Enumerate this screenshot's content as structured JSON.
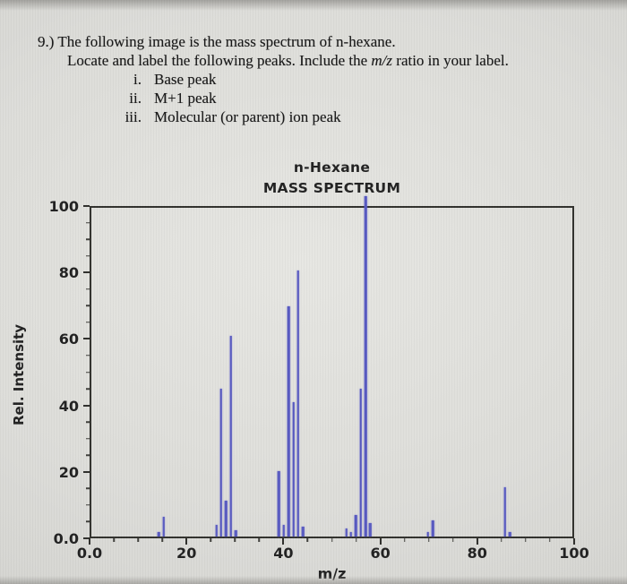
{
  "question": {
    "number": "9.)",
    "line1": "The following image is the mass spectrum of n-hexane.",
    "line2_pre": "Locate and label the following peaks. Include the ",
    "line2_italic": "m/z",
    "line2_post": " ratio in your label.",
    "items": [
      {
        "numeral": "i.",
        "label": "Base peak"
      },
      {
        "numeral": "ii.",
        "label": "M+1 peak"
      },
      {
        "numeral": "iii.",
        "label": "Molecular (or parent) ion peak"
      }
    ]
  },
  "chart": {
    "title_line1": "n-Hexane",
    "title_line2": "MASS SPECTRUM",
    "ylabel": "Rel. Intensity",
    "xlabel": "m/z",
    "x_tick_labels": [
      "0.0",
      "20",
      "40",
      "60",
      "80",
      "100"
    ],
    "y_tick_labels": [
      "100",
      "80",
      "60",
      "40",
      "20",
      "0.0"
    ]
  },
  "chart_data": {
    "type": "bar",
    "title": "n-Hexane MASS SPECTRUM",
    "xlabel": "m/z",
    "ylabel": "Rel. Intensity",
    "xlim": [
      0,
      100
    ],
    "ylim": [
      0,
      100
    ],
    "x_major_ticks": [
      0,
      20,
      40,
      60,
      80,
      100
    ],
    "y_major_ticks": [
      100,
      80,
      60,
      40,
      20,
      0
    ],
    "minor_tick_step": 5,
    "grid": false,
    "bar_color": "#5355c0",
    "peaks": [
      {
        "mz": 14,
        "intensity": 1.5
      },
      {
        "mz": 15,
        "intensity": 6
      },
      {
        "mz": 26,
        "intensity": 3.5
      },
      {
        "mz": 27,
        "intensity": 45
      },
      {
        "mz": 28,
        "intensity": 11
      },
      {
        "mz": 29,
        "intensity": 61
      },
      {
        "mz": 30,
        "intensity": 2
      },
      {
        "mz": 39,
        "intensity": 20
      },
      {
        "mz": 40,
        "intensity": 3.5
      },
      {
        "mz": 41,
        "intensity": 70
      },
      {
        "mz": 42,
        "intensity": 41
      },
      {
        "mz": 43,
        "intensity": 81
      },
      {
        "mz": 44,
        "intensity": 3
      },
      {
        "mz": 53,
        "intensity": 2.5
      },
      {
        "mz": 54,
        "intensity": 1.5
      },
      {
        "mz": 55,
        "intensity": 6.5
      },
      {
        "mz": 56,
        "intensity": 45
      },
      {
        "mz": 57,
        "intensity": 100
      },
      {
        "mz": 58,
        "intensity": 4
      },
      {
        "mz": 70,
        "intensity": 1.5
      },
      {
        "mz": 71,
        "intensity": 5
      },
      {
        "mz": 86,
        "intensity": 15
      },
      {
        "mz": 87,
        "intensity": 1.5
      }
    ]
  }
}
